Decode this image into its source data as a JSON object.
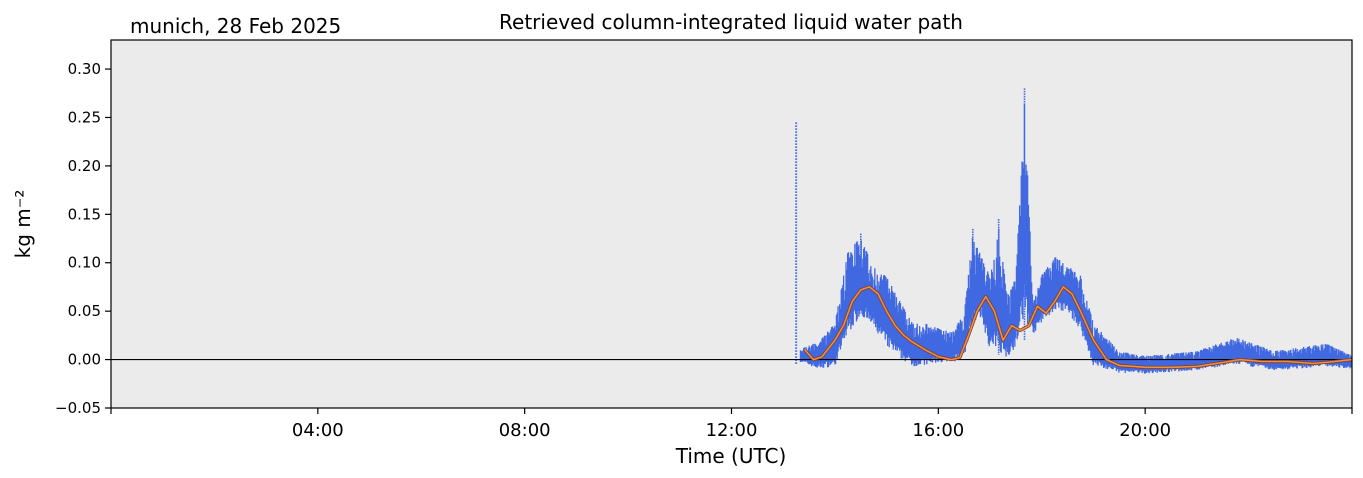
{
  "chart_data": {
    "type": "scatter",
    "title": "Retrieved column-integrated liquid water path",
    "subtitle": "munich, 28 Feb 2025",
    "xlabel": "Time (UTC)",
    "ylabel": "kg m⁻²",
    "xlim_hours": [
      0,
      24
    ],
    "ylim": [
      -0.05,
      0.33
    ],
    "x_ticks": [
      {
        "hour": 4,
        "label": "04:00"
      },
      {
        "hour": 8,
        "label": "08:00"
      },
      {
        "hour": 12,
        "label": "12:00"
      },
      {
        "hour": 16,
        "label": "16:00"
      },
      {
        "hour": 20,
        "label": "20:00"
      }
    ],
    "y_ticks": [
      {
        "value": -0.05,
        "label": "−0.05"
      },
      {
        "value": 0.0,
        "label": "0.00"
      },
      {
        "value": 0.05,
        "label": "0.05"
      },
      {
        "value": 0.1,
        "label": "0.10"
      },
      {
        "value": 0.15,
        "label": "0.15"
      },
      {
        "value": 0.2,
        "label": "0.20"
      },
      {
        "value": 0.25,
        "label": "0.25"
      },
      {
        "value": 0.3,
        "label": "0.30"
      }
    ],
    "zero_line": 0.0,
    "background_color": "#ebebeb",
    "series": [
      {
        "kind": "raw-scatter",
        "color": "#4169e1",
        "envelope": [
          {
            "x": "13:15",
            "lo": -0.005,
            "hi": 0.245
          },
          {
            "x": "13:20",
            "lo": -0.005,
            "hi": 0.012
          },
          {
            "x": "13:40",
            "lo": -0.015,
            "hi": 0.02
          },
          {
            "x": "14:00",
            "lo": -0.015,
            "hi": 0.04
          },
          {
            "x": "14:15",
            "lo": 0.01,
            "hi": 0.12
          },
          {
            "x": "14:30",
            "lo": 0.03,
            "hi": 0.13
          },
          {
            "x": "14:45",
            "lo": 0.02,
            "hi": 0.1
          },
          {
            "x": "15:00",
            "lo": 0.0,
            "hi": 0.09
          },
          {
            "x": "15:15",
            "lo": -0.01,
            "hi": 0.065
          },
          {
            "x": "15:30",
            "lo": -0.015,
            "hi": 0.04
          },
          {
            "x": "15:45",
            "lo": -0.015,
            "hi": 0.04
          },
          {
            "x": "16:00",
            "lo": -0.01,
            "hi": 0.035
          },
          {
            "x": "16:15",
            "lo": -0.01,
            "hi": 0.03
          },
          {
            "x": "16:30",
            "lo": -0.005,
            "hi": 0.05
          },
          {
            "x": "16:40",
            "lo": 0.02,
            "hi": 0.135
          },
          {
            "x": "16:50",
            "lo": 0.03,
            "hi": 0.11
          },
          {
            "x": "17:00",
            "lo": -0.005,
            "hi": 0.09
          },
          {
            "x": "17:10",
            "lo": -0.015,
            "hi": 0.145
          },
          {
            "x": "17:20",
            "lo": -0.01,
            "hi": 0.07
          },
          {
            "x": "17:30",
            "lo": 0.0,
            "hi": 0.09
          },
          {
            "x": "17:40",
            "lo": 0.0,
            "hi": 0.28
          },
          {
            "x": "17:50",
            "lo": 0.02,
            "hi": 0.06
          },
          {
            "x": "18:00",
            "lo": 0.03,
            "hi": 0.09
          },
          {
            "x": "18:15",
            "lo": 0.04,
            "hi": 0.11
          },
          {
            "x": "18:30",
            "lo": 0.04,
            "hi": 0.1
          },
          {
            "x": "18:45",
            "lo": 0.02,
            "hi": 0.09
          },
          {
            "x": "19:00",
            "lo": -0.015,
            "hi": 0.04
          },
          {
            "x": "19:30",
            "lo": -0.018,
            "hi": 0.01
          },
          {
            "x": "20:00",
            "lo": -0.018,
            "hi": 0.005
          },
          {
            "x": "21:00",
            "lo": -0.015,
            "hi": 0.01
          },
          {
            "x": "21:45",
            "lo": -0.01,
            "hi": 0.025
          },
          {
            "x": "22:30",
            "lo": -0.015,
            "hi": 0.01
          },
          {
            "x": "23:30",
            "lo": -0.012,
            "hi": 0.018
          },
          {
            "x": "24:00",
            "lo": -0.012,
            "hi": 0.005
          }
        ]
      },
      {
        "kind": "smoothed-line",
        "color": "#e8914a",
        "points": [
          {
            "x": "13:25",
            "y": 0.01
          },
          {
            "x": "13:35",
            "y": 0.0
          },
          {
            "x": "13:45",
            "y": 0.003
          },
          {
            "x": "14:00",
            "y": 0.02
          },
          {
            "x": "14:10",
            "y": 0.035
          },
          {
            "x": "14:20",
            "y": 0.06
          },
          {
            "x": "14:30",
            "y": 0.072
          },
          {
            "x": "14:40",
            "y": 0.075
          },
          {
            "x": "14:50",
            "y": 0.068
          },
          {
            "x": "15:00",
            "y": 0.05
          },
          {
            "x": "15:10",
            "y": 0.035
          },
          {
            "x": "15:20",
            "y": 0.025
          },
          {
            "x": "15:30",
            "y": 0.018
          },
          {
            "x": "15:45",
            "y": 0.01
          },
          {
            "x": "16:00",
            "y": 0.003
          },
          {
            "x": "16:15",
            "y": 0.0
          },
          {
            "x": "16:25",
            "y": 0.002
          },
          {
            "x": "16:35",
            "y": 0.025
          },
          {
            "x": "16:45",
            "y": 0.05
          },
          {
            "x": "16:55",
            "y": 0.065
          },
          {
            "x": "17:05",
            "y": 0.05
          },
          {
            "x": "17:15",
            "y": 0.02
          },
          {
            "x": "17:25",
            "y": 0.035
          },
          {
            "x": "17:35",
            "y": 0.03
          },
          {
            "x": "17:45",
            "y": 0.035
          },
          {
            "x": "17:55",
            "y": 0.055
          },
          {
            "x": "18:05",
            "y": 0.048
          },
          {
            "x": "18:15",
            "y": 0.06
          },
          {
            "x": "18:25",
            "y": 0.075
          },
          {
            "x": "18:35",
            "y": 0.068
          },
          {
            "x": "18:45",
            "y": 0.05
          },
          {
            "x": "19:00",
            "y": 0.02
          },
          {
            "x": "19:15",
            "y": 0.0
          },
          {
            "x": "19:30",
            "y": -0.006
          },
          {
            "x": "20:00",
            "y": -0.008
          },
          {
            "x": "20:30",
            "y": -0.008
          },
          {
            "x": "21:00",
            "y": -0.007
          },
          {
            "x": "21:30",
            "y": -0.003
          },
          {
            "x": "21:50",
            "y": 0.0
          },
          {
            "x": "22:15",
            "y": -0.002
          },
          {
            "x": "22:45",
            "y": -0.002
          },
          {
            "x": "23:15",
            "y": -0.004
          },
          {
            "x": "23:40",
            "y": -0.002
          },
          {
            "x": "24:00",
            "y": 0.0
          }
        ]
      }
    ]
  }
}
